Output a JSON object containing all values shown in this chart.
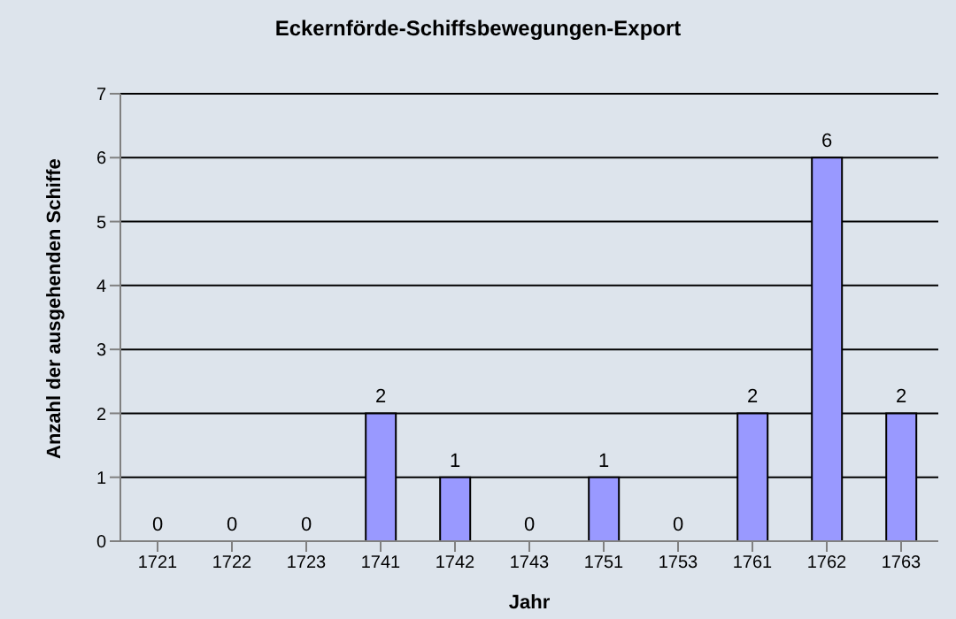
{
  "chart_data": {
    "type": "bar",
    "title": "Eckernförde-Schiffsbewegungen-Export",
    "xlabel": "Jahr",
    "ylabel": "Anzahl der ausgehenden Schiffe",
    "categories": [
      "1721",
      "1722",
      "1723",
      "1741",
      "1742",
      "1743",
      "1751",
      "1753",
      "1761",
      "1762",
      "1763"
    ],
    "values": [
      0,
      0,
      0,
      2,
      1,
      0,
      1,
      0,
      2,
      6,
      2
    ],
    "color": "#9999ff",
    "ylim": [
      0,
      7
    ],
    "yticks": [
      0,
      1,
      2,
      3,
      4,
      5,
      6,
      7
    ],
    "grid": "y",
    "data_labels": true,
    "legend": false
  }
}
